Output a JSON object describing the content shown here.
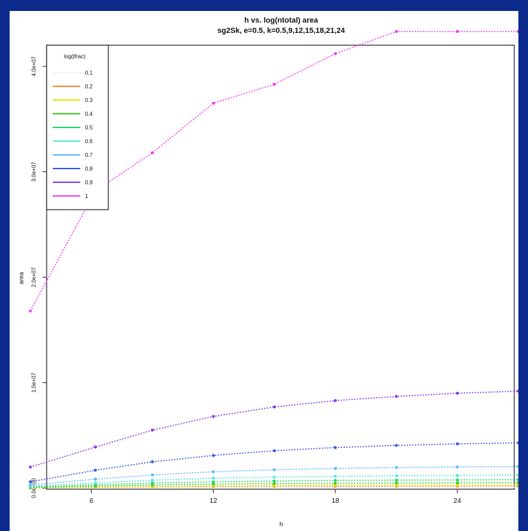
{
  "colors": {
    "background": "#0b2a8c",
    "panel": "#ffffff"
  },
  "chart_data": {
    "type": "line",
    "title": "h vs. log(ntotal) area",
    "subtitle": "sg2Sk, e=0.5, k=0.5,9,12,15,18,21,24",
    "xlabel": "h",
    "ylabel": "area",
    "xlim": [
      3.8,
      26.8
    ],
    "ylim": [
      -100000,
      42000000
    ],
    "x_ticks": [
      {
        "value": 6,
        "label": "6"
      },
      {
        "value": 12,
        "label": "12"
      },
      {
        "value": 18,
        "label": "18"
      },
      {
        "value": 24,
        "label": "24"
      }
    ],
    "y_ticks": [
      {
        "value": 0,
        "label": "0.0e+00"
      },
      {
        "value": 10000000,
        "label": "1.0e+07"
      },
      {
        "value": 20000000,
        "label": "2.0e+07"
      },
      {
        "value": 30000000,
        "label": "3.0e+07"
      },
      {
        "value": 40000000,
        "label": "4.0e+07"
      }
    ],
    "grid": false,
    "legend_title": "log(tfrac)",
    "legend_position": "top-left",
    "x": [
      3,
      6.2,
      9,
      12,
      15,
      18,
      21,
      24,
      27
    ],
    "series": [
      {
        "name": "0.1",
        "color": "#f4f4f4",
        "values": [
          40000,
          50000,
          60000,
          65000,
          70000,
          72000,
          74000,
          75000,
          76000
        ]
      },
      {
        "name": "0.2",
        "color": "#f08c3a",
        "values": [
          20000,
          80000,
          120000,
          150000,
          170000,
          180000,
          190000,
          195000,
          200000
        ]
      },
      {
        "name": "0.3",
        "color": "#e8e800",
        "values": [
          30000,
          120000,
          170000,
          220000,
          250000,
          270000,
          280000,
          290000,
          300000
        ]
      },
      {
        "name": "0.4",
        "color": "#3cd21e",
        "values": [
          60000,
          200000,
          300000,
          380000,
          430000,
          460000,
          480000,
          500000,
          510000
        ]
      },
      {
        "name": "0.5",
        "color": "#22d96e",
        "values": [
          100000,
          320000,
          480000,
          600000,
          680000,
          730000,
          760000,
          780000,
          800000
        ]
      },
      {
        "name": "0.6",
        "color": "#58ead8",
        "values": [
          180000,
          500000,
          750000,
          950000,
          1050000,
          1120000,
          1170000,
          1200000,
          1230000
        ]
      },
      {
        "name": "0.7",
        "color": "#5fb8ff",
        "values": [
          300000,
          850000,
          1250000,
          1550000,
          1750000,
          1870000,
          1950000,
          2010000,
          2050000
        ]
      },
      {
        "name": "0.8",
        "color": "#3c5ae6",
        "values": [
          600000,
          1700000,
          2500000,
          3100000,
          3550000,
          3850000,
          4050000,
          4200000,
          4300000
        ]
      },
      {
        "name": "0.9",
        "color": "#8a3cf0",
        "values": [
          2000000,
          3900000,
          5500000,
          6800000,
          7700000,
          8300000,
          8700000,
          9000000,
          9200000
        ]
      },
      {
        "name": "1",
        "color": "#f040f0",
        "values": [
          16800000,
          28200000,
          31800000,
          36500000,
          38300000,
          41200000,
          43300000,
          43300000,
          43300000
        ]
      }
    ]
  }
}
